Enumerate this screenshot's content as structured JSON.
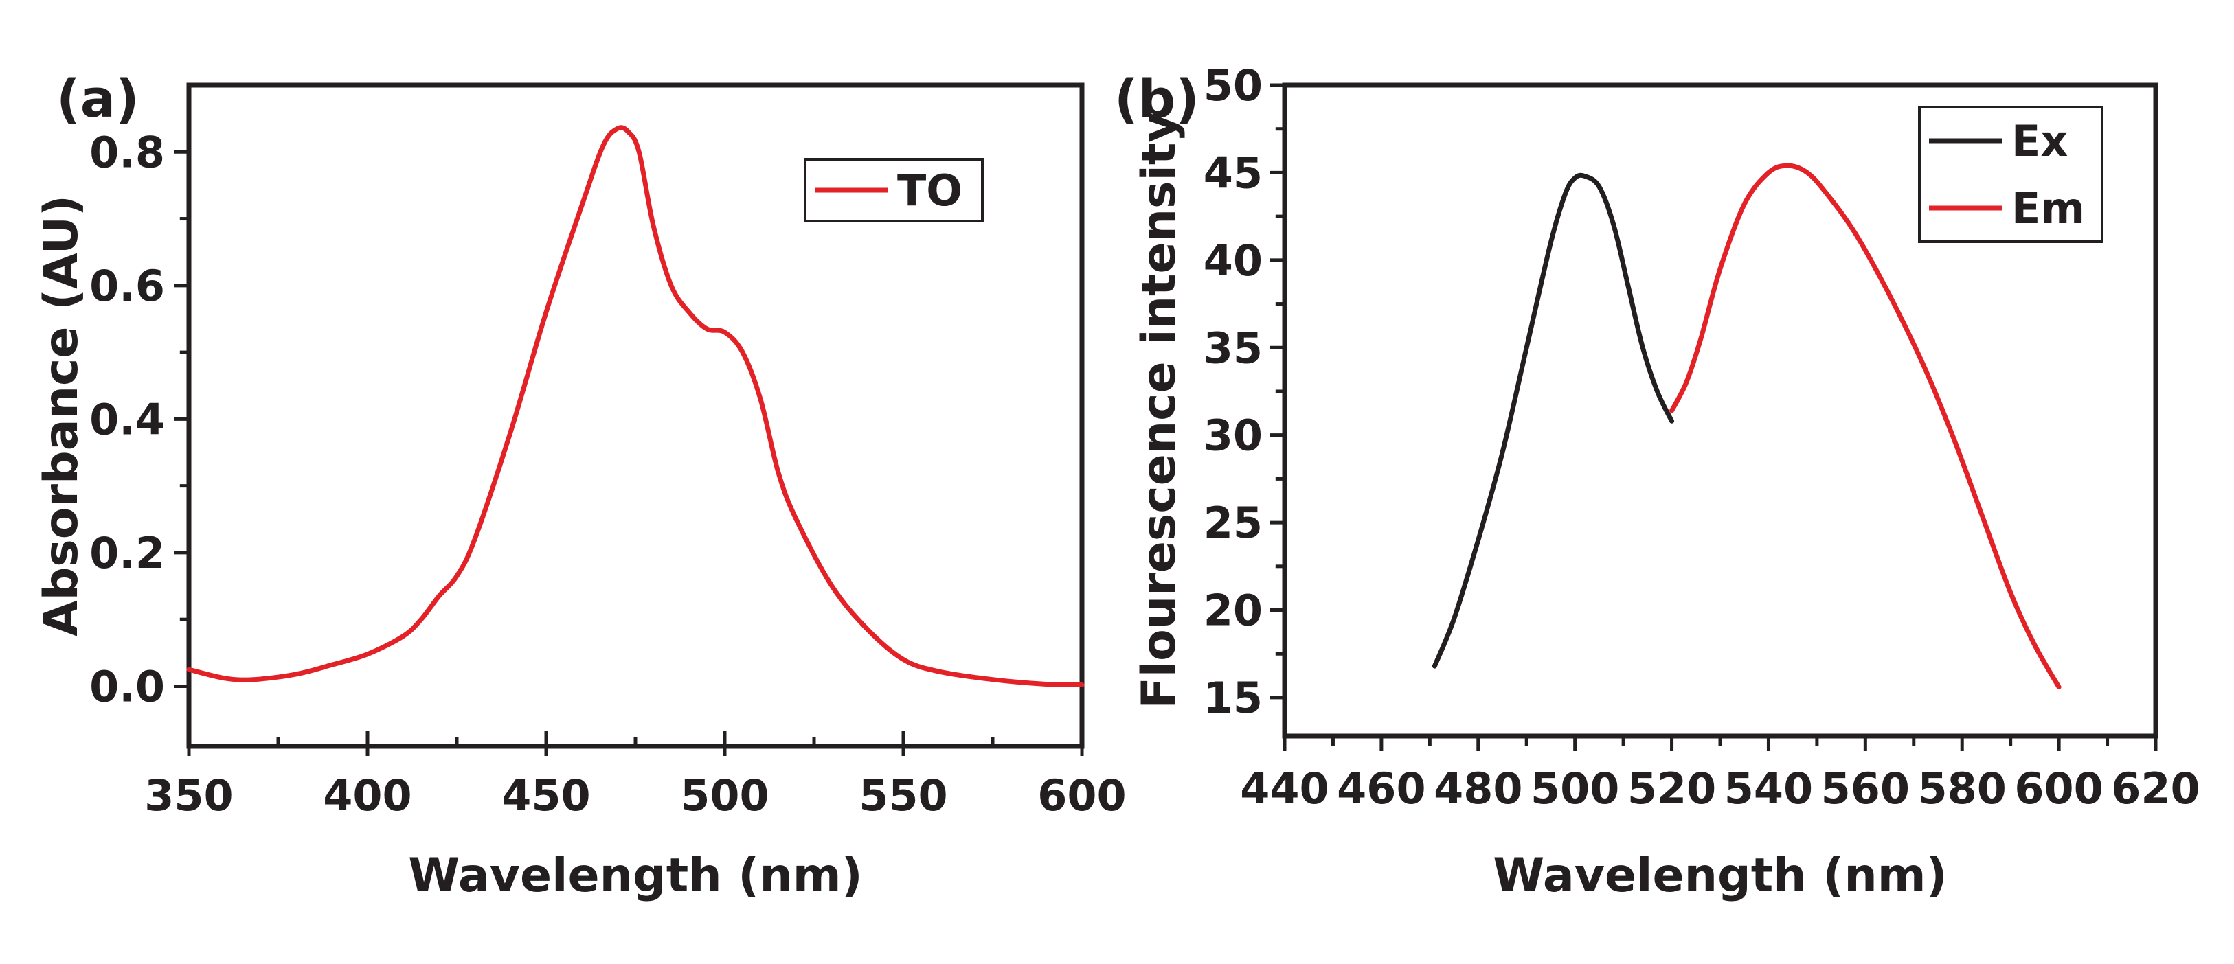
{
  "chart_data": [
    {
      "panel_label": "(a)",
      "type": "line",
      "title": "",
      "xlabel": "Wavelength (nm)",
      "ylabel": "Absorbance (AU)",
      "xlim": [
        350,
        600
      ],
      "ylim": [
        -0.09,
        0.9
      ],
      "xticks": [
        350,
        400,
        450,
        500,
        550,
        600
      ],
      "xtick_labels": [
        "350",
        "400",
        "450",
        "500",
        "550",
        "600"
      ],
      "yticks": [
        0.0,
        0.2,
        0.4,
        0.6,
        0.8
      ],
      "ytick_labels": [
        "0.0",
        "0.2",
        "0.4",
        "0.6",
        "0.8"
      ],
      "legend_position": "top-right",
      "series": [
        {
          "name": "TO",
          "color": "#e32228",
          "x": [
            350,
            360,
            368,
            380,
            390,
            400,
            410,
            415,
            420,
            425,
            430,
            440,
            450,
            460,
            466,
            470,
            473,
            476,
            480,
            485,
            490,
            495,
            500,
            505,
            510,
            515,
            520,
            530,
            540,
            550,
            560,
            575,
            590,
            600
          ],
          "y": [
            0.025,
            0.012,
            0.01,
            0.018,
            0.032,
            0.048,
            0.075,
            0.1,
            0.135,
            0.165,
            0.22,
            0.38,
            0.56,
            0.72,
            0.81,
            0.835,
            0.83,
            0.8,
            0.69,
            0.6,
            0.56,
            0.535,
            0.53,
            0.5,
            0.43,
            0.32,
            0.25,
            0.15,
            0.085,
            0.04,
            0.022,
            0.01,
            0.003,
            0.002
          ]
        }
      ]
    },
    {
      "panel_label": "(b)",
      "type": "line",
      "title": "",
      "xlabel": "Wavelength (nm)",
      "ylabel": "Flourescence intensity",
      "xlim": [
        440,
        620
      ],
      "ylim": [
        12.8,
        50
      ],
      "xticks": [
        440,
        460,
        480,
        500,
        520,
        540,
        560,
        580,
        600,
        620
      ],
      "xtick_labels": [
        "440",
        "460",
        "480",
        "500",
        "520",
        "540",
        "560",
        "580",
        "600",
        "620"
      ],
      "yticks": [
        15,
        20,
        25,
        30,
        35,
        40,
        45,
        50
      ],
      "ytick_labels": [
        "15",
        "20",
        "25",
        "30",
        "35",
        "40",
        "45",
        "50"
      ],
      "legend_position": "top-right",
      "series": [
        {
          "name": "Ex",
          "color": "#231f20",
          "x": [
            471,
            475,
            480,
            485,
            490,
            495,
            498,
            500,
            502,
            505,
            508,
            511,
            514,
            517,
            520
          ],
          "y": [
            16.8,
            19.5,
            24.0,
            29.0,
            35.0,
            41.0,
            43.8,
            44.7,
            44.8,
            44.2,
            42.0,
            38.5,
            35.0,
            32.5,
            30.8
          ]
        },
        {
          "name": "Em",
          "color": "#e32228",
          "x": [
            520,
            523,
            526,
            530,
            535,
            540,
            544,
            548,
            552,
            558,
            565,
            572,
            578,
            584,
            590,
            595,
            600
          ],
          "y": [
            31.4,
            33.0,
            35.5,
            39.5,
            43.2,
            45.0,
            45.4,
            45.0,
            43.8,
            41.5,
            38.0,
            34.0,
            30.0,
            25.5,
            21.0,
            18.0,
            15.6
          ]
        }
      ]
    }
  ]
}
